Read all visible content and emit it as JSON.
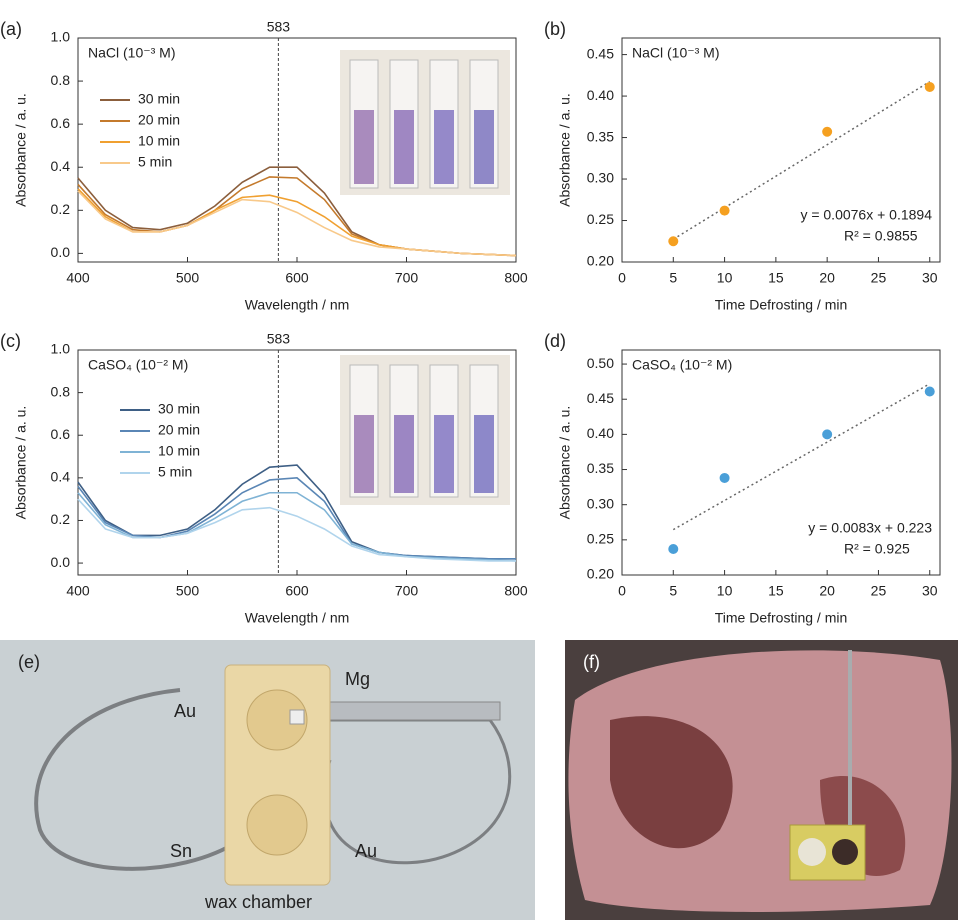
{
  "chart_data": [
    {
      "type": "line",
      "panel": "(a)",
      "label": "NaCl (10⁻³ M)",
      "x_label": "Wavelength / nm",
      "y_label": "Absorbance / a. u.",
      "x": [
        400,
        425,
        450,
        475,
        500,
        525,
        550,
        575,
        600,
        625,
        650,
        675,
        700,
        725,
        750,
        775,
        800
      ],
      "series": [
        {
          "name": "30 min",
          "color": "#8b5e3c",
          "values": [
            0.35,
            0.2,
            0.12,
            0.11,
            0.14,
            0.22,
            0.33,
            0.4,
            0.4,
            0.28,
            0.1,
            0.04,
            0.02,
            0.01,
            0.0,
            -0.005,
            -0.01
          ]
        },
        {
          "name": "20 min",
          "color": "#c47a2c",
          "values": [
            0.32,
            0.18,
            0.11,
            0.1,
            0.13,
            0.2,
            0.3,
            0.355,
            0.35,
            0.25,
            0.09,
            0.04,
            0.02,
            0.01,
            0.0,
            -0.005,
            -0.01
          ]
        },
        {
          "name": "10 min",
          "color": "#f0a030",
          "values": [
            0.3,
            0.17,
            0.1,
            0.1,
            0.13,
            0.2,
            0.26,
            0.27,
            0.24,
            0.17,
            0.08,
            0.04,
            0.02,
            0.01,
            0.0,
            -0.005,
            -0.01
          ]
        },
        {
          "name": "5 min",
          "color": "#f8c98a",
          "values": [
            0.29,
            0.16,
            0.1,
            0.1,
            0.13,
            0.19,
            0.25,
            0.24,
            0.19,
            0.12,
            0.06,
            0.03,
            0.02,
            0.01,
            0.0,
            -0.005,
            -0.01
          ]
        }
      ],
      "xlim": [
        400,
        800
      ],
      "ylim": [
        -0.04,
        1.0
      ],
      "xticks": [
        400,
        500,
        600,
        700,
        800
      ],
      "yticks": [
        {
          "value": 0,
          "label": "0.0"
        },
        0.2,
        0.4,
        0.6,
        0.8,
        {
          "value": 1,
          "label": "1.0"
        }
      ],
      "marker_line": 583
    },
    {
      "type": "scatter",
      "panel": "(b)",
      "label": "NaCl (10⁻³ M)",
      "x_label": "Time Defrosting / min",
      "y_label": "Absorbance / a. u.",
      "x": [
        5,
        10,
        20,
        30
      ],
      "values": [
        0.225,
        0.262,
        0.357,
        0.411
      ],
      "color": "#f5a020",
      "xlim": [
        0,
        31
      ],
      "ylim": [
        0.2,
        0.47
      ],
      "xticks": [
        0,
        5,
        10,
        15,
        20,
        25,
        30
      ],
      "yticks": [
        {
          "value": 0.2,
          "label": "0.20"
        },
        0.25,
        {
          "value": 0.3,
          "label": "0.30"
        },
        0.35,
        {
          "value": 0.4,
          "label": "0.40"
        },
        0.45
      ],
      "trendline": {
        "slope": 0.0076,
        "intercept": 0.1894,
        "equation": "y = 0.0076x + 0.1894",
        "r2": "R² = 0.9855"
      }
    },
    {
      "type": "line",
      "panel": "(c)",
      "label": "CaSO₄ (10⁻² M)",
      "x_label": "Wavelength / nm",
      "y_label": "Absorbance / a. u.",
      "x": [
        400,
        425,
        450,
        475,
        500,
        525,
        550,
        575,
        600,
        625,
        650,
        675,
        700,
        725,
        750,
        775,
        800
      ],
      "series": [
        {
          "name": "30 min",
          "color": "#3e5f85",
          "values": [
            0.38,
            0.2,
            0.13,
            0.13,
            0.16,
            0.25,
            0.37,
            0.45,
            0.46,
            0.32,
            0.1,
            0.05,
            0.035,
            0.03,
            0.025,
            0.02,
            0.02
          ]
        },
        {
          "name": "20 min",
          "color": "#5a86b5",
          "values": [
            0.36,
            0.19,
            0.13,
            0.12,
            0.15,
            0.23,
            0.33,
            0.39,
            0.4,
            0.29,
            0.09,
            0.05,
            0.035,
            0.03,
            0.025,
            0.02,
            0.02
          ]
        },
        {
          "name": "10 min",
          "color": "#7fb3d5",
          "values": [
            0.33,
            0.18,
            0.12,
            0.12,
            0.14,
            0.21,
            0.29,
            0.33,
            0.33,
            0.25,
            0.09,
            0.05,
            0.03,
            0.025,
            0.02,
            0.015,
            0.01
          ]
        },
        {
          "name": "5 min",
          "color": "#b0d4ec",
          "values": [
            0.3,
            0.16,
            0.12,
            0.12,
            0.14,
            0.19,
            0.25,
            0.26,
            0.22,
            0.16,
            0.08,
            0.04,
            0.03,
            0.02,
            0.015,
            0.01,
            0.01
          ]
        }
      ],
      "xlim": [
        400,
        800
      ],
      "ylim": [
        -0.056,
        1.0
      ],
      "xticks": [
        400,
        500,
        600,
        700,
        800
      ],
      "yticks": [
        {
          "value": 0,
          "label": "0.0"
        },
        0.2,
        0.4,
        0.6,
        0.8,
        {
          "value": 1,
          "label": "1.0"
        }
      ],
      "marker_line": 583
    },
    {
      "type": "scatter",
      "panel": "(d)",
      "label": "CaSO₄ (10⁻² M)",
      "x_label": "Time Defrosting / min",
      "y_label": "Absorbance / a. u.",
      "x": [
        5,
        10,
        20,
        30
      ],
      "values": [
        0.237,
        0.338,
        0.4,
        0.461
      ],
      "color": "#4a9fd8",
      "xlim": [
        0,
        31
      ],
      "ylim": [
        0.2,
        0.52
      ],
      "xticks": [
        0,
        5,
        10,
        15,
        20,
        25,
        30
      ],
      "yticks": [
        {
          "value": 0.2,
          "label": "0.20"
        },
        0.25,
        {
          "value": 0.3,
          "label": "0.30"
        },
        0.35,
        {
          "value": 0.4,
          "label": "0.40"
        },
        0.45,
        {
          "value": 0.5,
          "label": "0.50"
        }
      ],
      "trendline": {
        "slope": 0.0083,
        "intercept": 0.223,
        "equation": "y = 0.0083x + 0.223",
        "r2": "R² = 0.925"
      }
    }
  ],
  "photos": [
    {
      "panel": "(e)",
      "labels": [
        "Au",
        "Mg",
        "Sn",
        "Au",
        "wax chamber"
      ]
    },
    {
      "panel": "(f)"
    }
  ]
}
